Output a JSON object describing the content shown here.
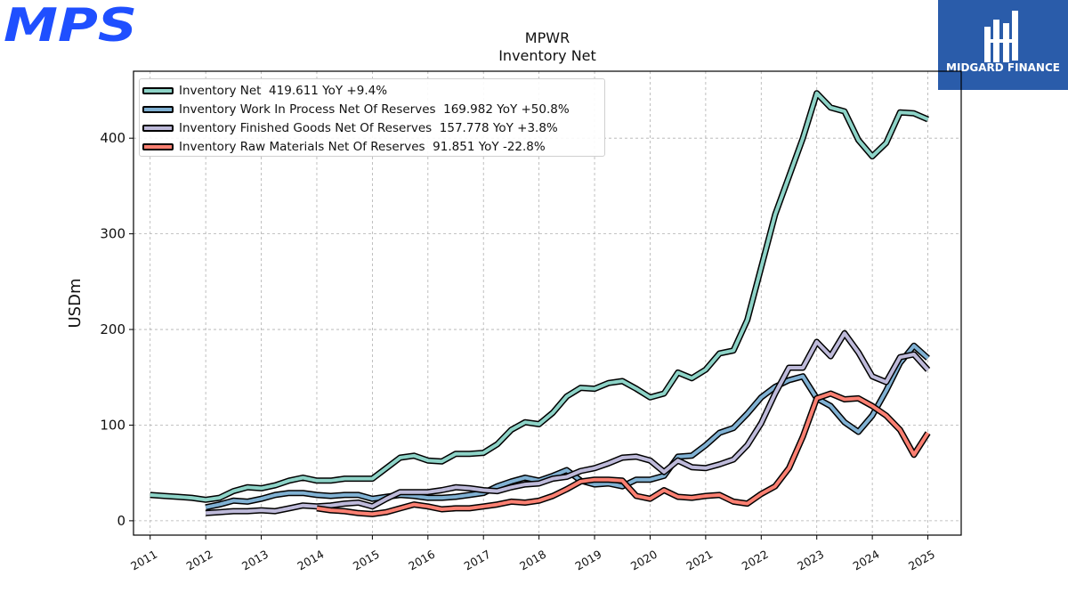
{
  "header": {
    "company_logo_text": "MPS",
    "brand_name": "MIDGARD FINANCE",
    "brand_color": "#2a5caa"
  },
  "chart_data": {
    "type": "line",
    "title": "MPWR",
    "subtitle": "Inventory Net",
    "ylabel": "USDm",
    "xlabel": "",
    "xlim": [
      2010.7,
      2025.6
    ],
    "ylim": [
      -15,
      470
    ],
    "yticks": [
      0,
      100,
      200,
      300,
      400
    ],
    "xticks": [
      "2011",
      "2012",
      "2013",
      "2014",
      "2015",
      "2016",
      "2017",
      "2018",
      "2019",
      "2020",
      "2021",
      "2022",
      "2023",
      "2024",
      "2025"
    ],
    "grid": true,
    "legend_position": "top-left",
    "series": [
      {
        "name": "Inventory Net",
        "legend_label": "Inventory Net  419.611 YoY +9.4%",
        "color": "#8dd3c7",
        "x": [
          2011.0,
          2011.25,
          2011.5,
          2011.75,
          2012.0,
          2012.25,
          2012.5,
          2012.75,
          2013.0,
          2013.25,
          2013.5,
          2013.75,
          2014.0,
          2014.25,
          2014.5,
          2014.75,
          2015.0,
          2015.25,
          2015.5,
          2015.75,
          2016.0,
          2016.25,
          2016.5,
          2016.75,
          2017.0,
          2017.25,
          2017.5,
          2017.75,
          2018.0,
          2018.25,
          2018.5,
          2018.75,
          2019.0,
          2019.25,
          2019.5,
          2019.75,
          2020.0,
          2020.25,
          2020.5,
          2020.75,
          2021.0,
          2021.25,
          2021.5,
          2021.75,
          2022.0,
          2022.25,
          2022.5,
          2022.75,
          2023.0,
          2023.25,
          2023.5,
          2023.75,
          2024.0,
          2024.25,
          2024.5,
          2024.75,
          2025.0
        ],
        "values": [
          27,
          26,
          25,
          24,
          22,
          24,
          31,
          35,
          34,
          37,
          42,
          45,
          42,
          42,
          44,
          44,
          44,
          55,
          66,
          68,
          63,
          62,
          70,
          70,
          71,
          80,
          95,
          103,
          101,
          113,
          130,
          139,
          138,
          144,
          146,
          138,
          129,
          133,
          155,
          149,
          158,
          175,
          178,
          210,
          265,
          320,
          360,
          400,
          447,
          432,
          428,
          398,
          381,
          395,
          427,
          426,
          419.611
        ]
      },
      {
        "name": "Inventory Work In Process Net Of Reserves",
        "legend_label": "Inventory Work In Process Net Of Reserves  169.982 YoY +50.8%",
        "color": "#80b1d3",
        "x": [
          2012.0,
          2012.25,
          2012.5,
          2012.75,
          2013.0,
          2013.25,
          2013.5,
          2013.75,
          2014.0,
          2014.25,
          2014.5,
          2014.75,
          2015.0,
          2015.25,
          2015.5,
          2015.75,
          2016.0,
          2016.25,
          2016.5,
          2016.75,
          2017.0,
          2017.25,
          2017.5,
          2017.75,
          2018.0,
          2018.25,
          2018.5,
          2018.75,
          2019.0,
          2019.25,
          2019.5,
          2019.75,
          2020.0,
          2020.25,
          2020.5,
          2020.75,
          2021.0,
          2021.25,
          2021.5,
          2021.75,
          2022.0,
          2022.25,
          2022.5,
          2022.75,
          2023.0,
          2023.25,
          2023.5,
          2023.75,
          2024.0,
          2024.25,
          2024.5,
          2024.75,
          2025.0
        ],
        "values": [
          14,
          17,
          21,
          20,
          23,
          27,
          29,
          29,
          27,
          26,
          27,
          27,
          23,
          25,
          27,
          26,
          24,
          24,
          25,
          27,
          29,
          36,
          41,
          45,
          42,
          47,
          53,
          42,
          38,
          39,
          36,
          43,
          43,
          47,
          67,
          68,
          79,
          92,
          97,
          112,
          129,
          140,
          147,
          151,
          128,
          120,
          103,
          93,
          110,
          136,
          165,
          183,
          169.982
        ]
      },
      {
        "name": "Inventory Finished Goods Net Of Reserves",
        "legend_label": "Inventory Finished Goods Net Of Reserves  157.778 YoY +3.8%",
        "color": "#bebada",
        "x": [
          2012.0,
          2012.25,
          2012.5,
          2012.75,
          2013.0,
          2013.25,
          2013.5,
          2013.75,
          2014.0,
          2014.25,
          2014.5,
          2014.75,
          2015.0,
          2015.25,
          2015.5,
          2015.75,
          2016.0,
          2016.25,
          2016.5,
          2016.75,
          2017.0,
          2017.25,
          2017.5,
          2017.75,
          2018.0,
          2018.25,
          2018.5,
          2018.75,
          2019.0,
          2019.25,
          2019.5,
          2019.75,
          2020.0,
          2020.25,
          2020.5,
          2020.75,
          2021.0,
          2021.25,
          2021.5,
          2021.75,
          2022.0,
          2022.25,
          2022.5,
          2022.75,
          2023.0,
          2023.25,
          2023.5,
          2023.75,
          2024.0,
          2024.25,
          2024.5,
          2024.75,
          2025.0
        ],
        "values": [
          8,
          9,
          10,
          10,
          11,
          10,
          13,
          16,
          15,
          16,
          18,
          19,
          15,
          23,
          30,
          30,
          30,
          32,
          35,
          34,
          32,
          31,
          35,
          38,
          39,
          44,
          46,
          52,
          55,
          60,
          66,
          67,
          63,
          51,
          63,
          56,
          55,
          59,
          64,
          79,
          102,
          133,
          160,
          160,
          187,
          172,
          196,
          176,
          151,
          145,
          171,
          174,
          157.778
        ]
      },
      {
        "name": "Inventory Raw Materials Net Of Reserves",
        "legend_label": "Inventory Raw Materials Net Of Reserves  91.851 YoY -22.8%",
        "color": "#fb8072",
        "x": [
          2014.0,
          2014.25,
          2014.5,
          2014.75,
          2015.0,
          2015.25,
          2015.5,
          2015.75,
          2016.0,
          2016.25,
          2016.5,
          2016.75,
          2017.0,
          2017.25,
          2017.5,
          2017.75,
          2018.0,
          2018.25,
          2018.5,
          2018.75,
          2019.0,
          2019.25,
          2019.5,
          2019.75,
          2020.0,
          2020.25,
          2020.5,
          2020.75,
          2021.0,
          2021.25,
          2021.5,
          2021.75,
          2022.0,
          2022.25,
          2022.5,
          2022.75,
          2023.0,
          2023.25,
          2023.5,
          2023.75,
          2024.0,
          2024.25,
          2024.5,
          2024.75,
          2025.0
        ],
        "values": [
          13,
          11,
          10,
          8,
          7,
          9,
          13,
          17,
          15,
          12,
          13,
          13,
          15,
          17,
          20,
          19,
          21,
          26,
          33,
          41,
          43,
          43,
          42,
          26,
          23,
          32,
          25,
          24,
          26,
          27,
          20,
          18,
          28,
          36,
          55,
          88,
          128,
          133,
          127,
          128,
          120,
          110,
          95,
          69,
          91.851
        ]
      }
    ]
  }
}
